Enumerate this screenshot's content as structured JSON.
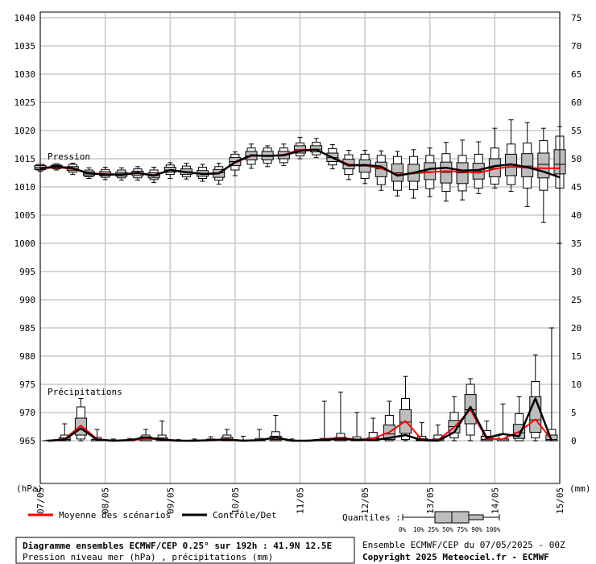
{
  "chart_data": {
    "type": "boxplot",
    "title": "Diagramme ensembles ECMWF/CEP 0.25° sur 192h : 41.9N 12.5E",
    "subtitle": "Pression niveau mer (hPa) , précipitations (mm)",
    "run_info": "Ensemble ECMWF/CEP du 07/05/2025 - 00Z",
    "copyright": "Copyright 2025 Meteociel.fr - ECMWF",
    "left_axis_unit": "(hPa)",
    "right_axis_unit": "(mm)",
    "left_axis_ticks": [
      "1040",
      "1035",
      "1030",
      "1025",
      "1020",
      "1015",
      "1010",
      "1005",
      "1000",
      "995",
      "990",
      "985",
      "980",
      "975",
      "970",
      "965"
    ],
    "right_axis_ticks": [
      "75",
      "70",
      "65",
      "60",
      "55",
      "50",
      "45",
      "40",
      "35",
      "30",
      "25",
      "20",
      "15",
      "10",
      "5",
      "0"
    ],
    "x_ticks": [
      "07/05",
      "08/05",
      "09/05",
      "10/05",
      "11/05",
      "12/05",
      "13/05",
      "14/05",
      "15/05"
    ],
    "pressure_label": "Pression",
    "precip_label": "Précipitations",
    "legend": {
      "mean": "Moyenne des scénarios",
      "control": "Contrôle/Det",
      "quantiles_label": "Quantiles :",
      "quantile_values": "0%  10% 25% 50% 75% 90% 100%"
    },
    "colors": {
      "mean": "#ff0000",
      "control": "#000000",
      "box": "#bdbdbd",
      "grid": "#c8c8c8"
    },
    "pressure": {
      "ylim": [
        965,
        1040
      ],
      "steps_h": [
        0,
        6,
        12,
        18,
        24,
        30,
        36,
        42,
        48,
        54,
        60,
        66,
        72,
        78,
        84,
        90,
        96,
        102,
        108,
        114,
        120,
        126,
        132,
        138,
        144,
        150,
        156,
        162,
        168,
        174,
        180,
        186,
        192
      ],
      "quantiles": [
        [
          1012.8,
          1013.0,
          1013.1,
          1013.4,
          1013.8,
          1014.0,
          1014.0
        ],
        [
          1013.0,
          1013.2,
          1013.4,
          1013.6,
          1013.8,
          1014.0,
          1014.1
        ],
        [
          1012.2,
          1012.6,
          1012.9,
          1013.2,
          1013.6,
          1014.0,
          1014.2
        ],
        [
          1011.5,
          1011.8,
          1012.0,
          1012.3,
          1012.7,
          1013.0,
          1013.4
        ],
        [
          1011.3,
          1011.7,
          1012.0,
          1012.3,
          1012.7,
          1013.1,
          1013.5
        ],
        [
          1011.2,
          1011.6,
          1011.9,
          1012.2,
          1012.6,
          1013.0,
          1013.4
        ],
        [
          1011.2,
          1011.6,
          1012.0,
          1012.4,
          1012.8,
          1013.2,
          1013.6
        ],
        [
          1010.8,
          1011.3,
          1011.6,
          1012.0,
          1012.5,
          1013.0,
          1013.5
        ],
        [
          1011.5,
          1012.2,
          1012.6,
          1013.0,
          1013.5,
          1013.9,
          1014.3
        ],
        [
          1011.4,
          1011.8,
          1012.2,
          1012.7,
          1013.2,
          1013.7,
          1014.2
        ],
        [
          1011.0,
          1011.5,
          1011.9,
          1012.4,
          1012.9,
          1013.5,
          1014.0
        ],
        [
          1010.5,
          1011.2,
          1011.7,
          1012.5,
          1013.1,
          1013.6,
          1014.2
        ],
        [
          1012.0,
          1013.0,
          1013.8,
          1014.5,
          1015.2,
          1015.8,
          1016.2
        ],
        [
          1013.3,
          1014.0,
          1014.8,
          1015.5,
          1016.3,
          1016.9,
          1017.6
        ],
        [
          1013.6,
          1014.2,
          1014.8,
          1015.5,
          1016.3,
          1016.9,
          1017.3
        ],
        [
          1013.8,
          1014.3,
          1015.0,
          1015.7,
          1016.3,
          1016.9,
          1017.6
        ],
        [
          1015.0,
          1015.5,
          1016.0,
          1016.6,
          1017.3,
          1017.8,
          1018.8
        ],
        [
          1015.2,
          1015.7,
          1016.2,
          1016.7,
          1017.3,
          1017.9,
          1018.6
        ],
        [
          1013.2,
          1013.9,
          1014.5,
          1015.2,
          1016.0,
          1016.8,
          1017.5
        ],
        [
          1011.3,
          1012.2,
          1013.2,
          1014.0,
          1014.9,
          1015.7,
          1016.5
        ],
        [
          1010.6,
          1011.5,
          1012.6,
          1013.7,
          1014.8,
          1015.8,
          1016.5
        ],
        [
          1009.4,
          1010.4,
          1011.8,
          1013.2,
          1014.4,
          1015.6,
          1016.4
        ],
        [
          1008.4,
          1009.4,
          1011.0,
          1012.5,
          1014.1,
          1015.4,
          1016.3
        ],
        [
          1008.0,
          1009.5,
          1011.0,
          1012.5,
          1014.0,
          1015.4,
          1016.6
        ],
        [
          1008.3,
          1009.7,
          1011.3,
          1012.7,
          1014.3,
          1015.6,
          1016.9
        ],
        [
          1007.5,
          1009.2,
          1010.7,
          1012.6,
          1014.4,
          1015.9,
          1017.9
        ],
        [
          1007.7,
          1009.3,
          1010.6,
          1012.5,
          1014.3,
          1015.6,
          1018.3
        ],
        [
          1008.8,
          1009.8,
          1011.4,
          1012.8,
          1014.2,
          1015.8,
          1018.0
        ],
        [
          1009.8,
          1010.5,
          1011.8,
          1013.3,
          1015.0,
          1016.9,
          1020.4
        ],
        [
          1009.2,
          1010.4,
          1012.0,
          1014.0,
          1015.8,
          1017.6,
          1021.9
        ],
        [
          1006.5,
          1009.8,
          1011.8,
          1013.7,
          1015.9,
          1017.8,
          1021.4
        ],
        [
          1003.7,
          1009.4,
          1011.6,
          1014.0,
          1016.0,
          1018.2,
          1020.4
        ],
        [
          1000.0,
          1009.8,
          1012.3,
          1014.0,
          1016.6,
          1019.0,
          1020.7
        ]
      ],
      "mean": [
        1013.2,
        1013.5,
        1013.2,
        1012.4,
        1012.3,
        1012.2,
        1012.4,
        1012.1,
        1013.0,
        1012.6,
        1012.3,
        1012.5,
        1014.3,
        1015.5,
        1015.5,
        1015.7,
        1016.6,
        1016.6,
        1015.2,
        1014.0,
        1013.8,
        1013.3,
        1012.2,
        1012.4,
        1012.6,
        1012.8,
        1012.7,
        1012.5,
        1013.2,
        1013.6,
        1013.4,
        1013.3,
        1013.3
      ],
      "control": [
        1013.3,
        1013.6,
        1013.3,
        1012.4,
        1012.2,
        1012.2,
        1012.5,
        1012.0,
        1013.0,
        1012.6,
        1012.3,
        1012.4,
        1014.4,
        1015.6,
        1015.5,
        1015.6,
        1016.4,
        1016.6,
        1015.2,
        1013.8,
        1013.9,
        1013.6,
        1012.0,
        1012.5,
        1013.2,
        1013.4,
        1012.9,
        1013.0,
        1013.7,
        1014.0,
        1013.5,
        1012.7,
        1011.7
      ]
    },
    "precipitation": {
      "ylim_mm": [
        0,
        75
      ],
      "steps_h": [
        0,
        6,
        12,
        18,
        24,
        30,
        36,
        42,
        48,
        54,
        60,
        66,
        72,
        78,
        84,
        90,
        96,
        102,
        108,
        114,
        120,
        126,
        132,
        138,
        144,
        150,
        156,
        162,
        168,
        174,
        180,
        186,
        192
      ],
      "quantiles": [
        [
          0,
          0,
          0,
          0,
          0,
          0,
          0.1
        ],
        [
          0,
          0,
          0,
          0.2,
          0.5,
          1,
          3
        ],
        [
          0,
          0.3,
          1,
          2,
          4,
          6,
          7.5
        ],
        [
          0,
          0,
          0,
          0,
          0.2,
          0.6,
          2
        ],
        [
          0,
          0,
          0,
          0,
          0,
          0.1,
          0.3
        ],
        [
          0,
          0,
          0,
          0,
          0.1,
          0.2,
          0.4
        ],
        [
          0,
          0,
          0,
          0.3,
          0.7,
          1,
          2
        ],
        [
          0,
          0,
          0,
          0.2,
          0.5,
          1,
          3.5
        ],
        [
          0,
          0,
          0,
          0,
          0,
          0.1,
          0.2
        ],
        [
          0,
          0,
          0,
          0,
          0,
          0.1,
          0.3
        ],
        [
          0,
          0,
          0,
          0,
          0.1,
          0.3,
          0.7
        ],
        [
          0,
          0,
          0,
          0.2,
          0.6,
          1,
          2
        ],
        [
          0,
          0,
          0,
          0,
          0,
          0.1,
          0.8
        ],
        [
          0,
          0,
          0,
          0,
          0.1,
          0.4,
          2
        ],
        [
          0,
          0,
          0,
          0.2,
          0.8,
          1.6,
          4.5
        ],
        [
          0,
          0,
          0,
          0,
          0,
          0.1,
          0.3
        ],
        [
          0,
          0,
          0,
          0,
          0,
          0,
          0.1
        ],
        [
          0,
          0,
          0,
          0,
          0.1,
          0.4,
          7
        ],
        [
          0,
          0,
          0,
          0.2,
          0.6,
          1.3,
          8.6
        ],
        [
          0,
          0,
          0,
          0,
          0.2,
          0.7,
          5
        ],
        [
          0,
          0,
          0,
          0.1,
          0.5,
          1.5,
          4
        ],
        [
          0,
          0,
          0.2,
          1.2,
          2.8,
          4.5,
          7
        ],
        [
          0,
          0.2,
          1.3,
          3.3,
          5.5,
          7.5,
          11.4
        ],
        [
          0,
          0,
          0,
          0.1,
          0.4,
          0.8,
          3.2
        ],
        [
          0,
          0,
          0,
          0,
          0.3,
          1,
          2.8
        ],
        [
          0,
          0.5,
          1.4,
          2.5,
          3.6,
          5,
          7.8
        ],
        [
          0,
          1,
          3,
          5.5,
          8.2,
          10,
          11
        ],
        [
          0,
          0,
          0,
          0.2,
          0.8,
          1.8,
          3.5
        ],
        [
          0,
          0,
          0,
          0,
          0.3,
          1.2,
          6.5
        ],
        [
          0,
          0,
          0.4,
          1.4,
          2.9,
          4.8,
          7.8
        ],
        [
          0,
          0.5,
          1.5,
          3.7,
          7.8,
          10.5,
          15.2
        ],
        [
          0,
          0,
          0,
          0.2,
          1,
          2,
          20
        ]
      ],
      "mean": [
        0,
        0.3,
        2.7,
        0.3,
        0,
        0.1,
        0.3,
        0.3,
        0,
        0,
        0.1,
        0.3,
        0,
        0.1,
        0.5,
        0,
        0,
        0.3,
        0.5,
        0.2,
        0.4,
        1.5,
        3.5,
        0.2,
        0.1,
        2.4,
        5.5,
        0.3,
        0.3,
        1.6,
        3.8,
        0.2
      ],
      "control": [
        0,
        0.2,
        2.2,
        0.2,
        0,
        0.1,
        0.6,
        0.2,
        0,
        0,
        0.1,
        0.2,
        0,
        0.1,
        0.6,
        0,
        0,
        0.2,
        0.3,
        0.2,
        0.1,
        0.5,
        1,
        0.1,
        0,
        1.5,
        6,
        0.5,
        1.2,
        0.8,
        7.5,
        0
      ]
    }
  }
}
